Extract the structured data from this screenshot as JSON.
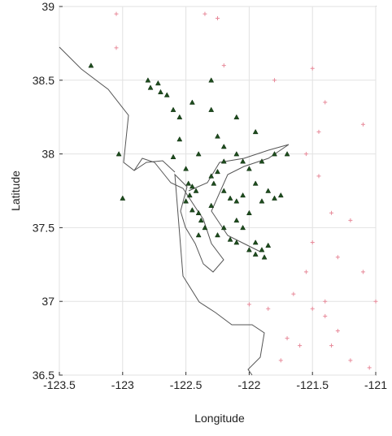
{
  "chart_data": {
    "type": "scatter",
    "x_label": "Longitude",
    "y_label": "Latitude",
    "xlim": [
      -123.5,
      -121
    ],
    "ylim": [
      36.5,
      39
    ],
    "xticks": [
      -123.5,
      -123,
      -122.5,
      -122,
      -121.5,
      -121
    ],
    "yticks": [
      36.5,
      37,
      37.5,
      38,
      38.5,
      39
    ],
    "grid": true,
    "series": [
      {
        "color": "#1e4d1e",
        "marker": "triangle",
        "x": [
          -122.78,
          -122.72,
          -122.7,
          -122.8,
          -122.65,
          -122.6,
          -122.55,
          -122.45,
          -122.3,
          -122.3,
          -122.25,
          -122.2,
          -122.55,
          -122.6,
          -122.5,
          -122.48,
          -122.45,
          -122.42,
          -122.47,
          -122.5,
          -122.45,
          -122.4,
          -122.38,
          -122.35,
          -122.4,
          -122.3,
          -122.28,
          -122.25,
          -122.2,
          -122.15,
          -122.1,
          -122.05,
          -122.0,
          -122.1,
          -122.05,
          -121.95,
          -121.9,
          -121.85,
          -121.88,
          -121.95,
          -122.0,
          -122.1,
          -122.15,
          -121.8,
          -121.85,
          -121.9,
          -121.75,
          -121.95,
          -122.0,
          -122.05,
          -121.9,
          -121.8,
          -121.7,
          -122.2,
          -122.1,
          -122.4,
          -123.0,
          -123.03,
          -123.25,
          -121.95,
          -122.1,
          -122.3,
          -122.2,
          -122.25
        ],
        "y": [
          38.45,
          38.48,
          38.42,
          38.5,
          38.4,
          38.3,
          38.25,
          38.35,
          38.5,
          38.3,
          38.12,
          38.05,
          38.1,
          37.98,
          37.9,
          37.8,
          37.78,
          37.75,
          37.72,
          37.68,
          37.62,
          37.6,
          37.55,
          37.5,
          37.45,
          37.85,
          37.8,
          37.88,
          37.75,
          37.7,
          37.68,
          37.72,
          37.6,
          37.55,
          37.5,
          37.4,
          37.35,
          37.38,
          37.3,
          37.32,
          37.35,
          37.4,
          37.42,
          37.7,
          37.75,
          37.68,
          37.72,
          37.8,
          37.9,
          37.95,
          37.95,
          38.0,
          38.0,
          37.95,
          38.0,
          38.0,
          37.7,
          38.0,
          38.6,
          38.15,
          38.25,
          37.65,
          37.5,
          37.45
        ]
      },
      {
        "color": "#e88a9a",
        "marker": "plus",
        "x": [
          -123.05,
          -122.35,
          -122.25,
          -122.2,
          -121.8,
          -121.5,
          -121.4,
          -121.1,
          -121.55,
          -121.45,
          -121.35,
          -121.3,
          -121.2,
          -121.1,
          -121.0,
          -121.3,
          -121.4,
          -121.5,
          -121.6,
          -121.7,
          -121.85,
          -122.0,
          -121.65,
          -121.4,
          -121.2,
          -121.05,
          -121.35,
          -121.55,
          -121.5,
          -121.45,
          -123.05,
          -121.75
        ],
        "y": [
          38.72,
          38.95,
          38.92,
          38.6,
          38.5,
          38.58,
          38.35,
          38.2,
          38.0,
          37.85,
          37.6,
          37.3,
          37.55,
          37.2,
          37.0,
          36.8,
          36.9,
          36.95,
          36.7,
          36.75,
          36.95,
          36.98,
          37.05,
          37.0,
          36.6,
          36.55,
          36.7,
          37.2,
          37.4,
          38.15,
          38.95,
          36.6
        ]
      }
    ]
  }
}
